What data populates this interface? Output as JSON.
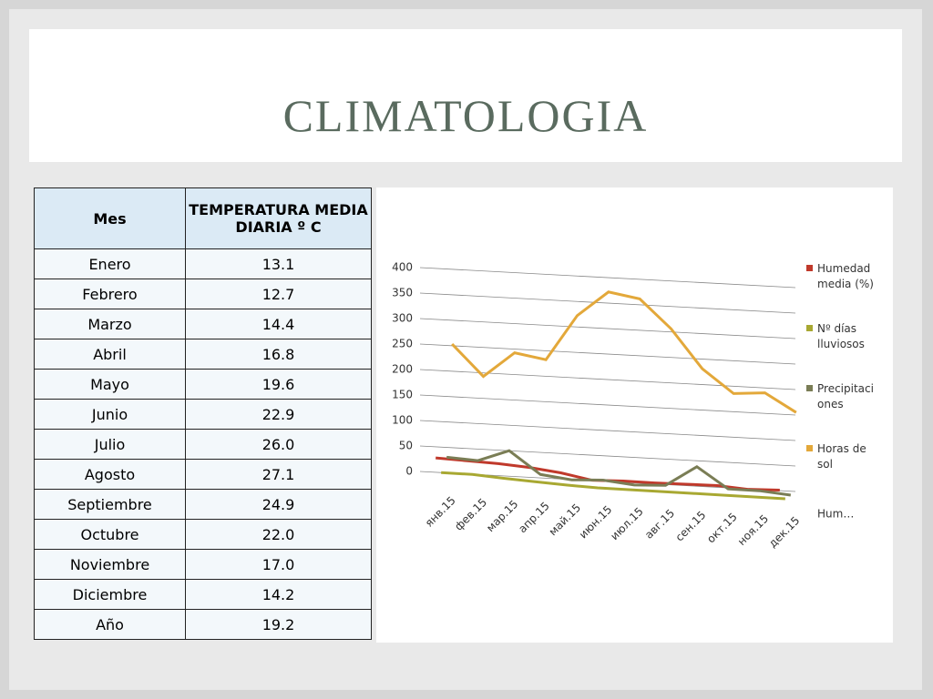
{
  "title": "CLIMATOLOGIA",
  "table": {
    "header": [
      "Mes",
      "TEMPERATURA MEDIA DIARIA º C"
    ],
    "rows": [
      [
        "Enero",
        "13.1"
      ],
      [
        "Febrero",
        "12.7"
      ],
      [
        "Marzo",
        "14.4"
      ],
      [
        "Abril",
        "16.8"
      ],
      [
        "Mayo",
        "19.6"
      ],
      [
        "Junio",
        "22.9"
      ],
      [
        "Julio",
        "26.0"
      ],
      [
        "Agosto",
        "27.1"
      ],
      [
        "Septiembre",
        "24.9"
      ],
      [
        "Octubre",
        "22.0"
      ],
      [
        "Noviembre",
        "17.0"
      ],
      [
        "Diciembre",
        "14.2"
      ],
      [
        "Año",
        "19.2"
      ]
    ]
  },
  "chart_data": {
    "type": "line",
    "categories": [
      "янв.15",
      "фев.15",
      "мар.15",
      "апр.15",
      "май.15",
      "июн.15",
      "июл.15",
      "авг.15",
      "сен.15",
      "окт.15",
      "ноя.15",
      "дек.15"
    ],
    "series": [
      {
        "name": "Humedad media (%)",
        "color": "#c0392b",
        "values": [
          48,
          46,
          44,
          40,
          33,
          22,
          24,
          24,
          25,
          26,
          22,
          24
        ]
      },
      {
        "name": "Nº días lluviosos",
        "color": "#a8a832",
        "values": [
          12,
          12,
          8,
          5,
          2,
          0,
          0,
          0,
          0,
          0,
          0,
          0
        ]
      },
      {
        "name": "Precipitaciones",
        "color": "#7a7d55",
        "values": [
          35,
          32,
          55,
          12,
          5,
          8,
          2,
          5,
          45,
          5,
          5,
          0
        ]
      },
      {
        "name": "Horas de sol",
        "color": "#e3a83a",
        "values": [
          250,
          190,
          240,
          230,
          320,
          370,
          360,
          305,
          230,
          185,
          190,
          155
        ]
      }
    ],
    "legend_overflow": "Hum…",
    "ylim": [
      0,
      400
    ],
    "yticks": [
      0,
      50,
      100,
      150,
      200,
      250,
      300,
      350,
      400
    ],
    "grid": true,
    "legend": "right"
  }
}
